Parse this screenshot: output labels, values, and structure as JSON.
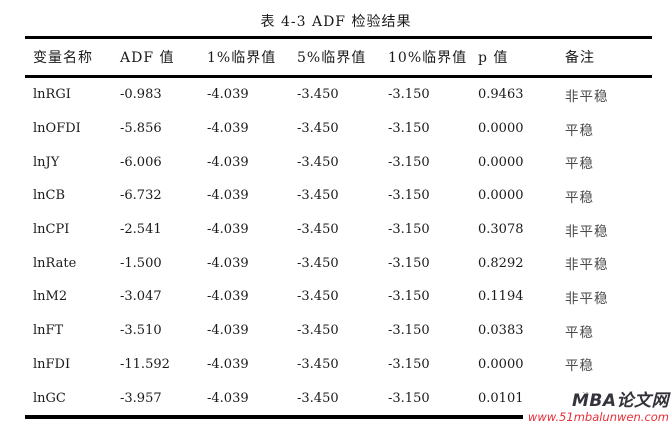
{
  "title": "表 4-3 ADF 检验结果",
  "table": {
    "headers": [
      "变量名称",
      "ADF 值",
      "1%临界值",
      "5%临界值",
      "10%临界值",
      "p 值",
      "备注"
    ],
    "rows": [
      {
        "variable": "lnRGI",
        "adf": "-0.983",
        "crit1": "-4.039",
        "crit5": "-3.450",
        "crit10": "-3.150",
        "p": "0.9463",
        "remark": "非平稳"
      },
      {
        "variable": "lnOFDI",
        "adf": "-5.856",
        "crit1": "-4.039",
        "crit5": "-3.450",
        "crit10": "-3.150",
        "p": "0.0000",
        "remark": "平稳"
      },
      {
        "variable": "lnJY",
        "adf": "-6.006",
        "crit1": "-4.039",
        "crit5": "-3.450",
        "crit10": "-3.150",
        "p": "0.0000",
        "remark": "平稳"
      },
      {
        "variable": "lnCB",
        "adf": "-6.732",
        "crit1": "-4.039",
        "crit5": "-3.450",
        "crit10": "-3.150",
        "p": "0.0000",
        "remark": "平稳"
      },
      {
        "variable": "lnCPI",
        "adf": "-2.541",
        "crit1": "-4.039",
        "crit5": "-3.450",
        "crit10": "-3.150",
        "p": "0.3078",
        "remark": "非平稳"
      },
      {
        "variable": "lnRate",
        "adf": "-1.500",
        "crit1": "-4.039",
        "crit5": "-3.450",
        "crit10": "-3.150",
        "p": "0.8292",
        "remark": "非平稳"
      },
      {
        "variable": "lnM2",
        "adf": "-3.047",
        "crit1": "-4.039",
        "crit5": "-3.450",
        "crit10": "-3.150",
        "p": "0.1194",
        "remark": "非平稳"
      },
      {
        "variable": "lnFT",
        "adf": "-3.510",
        "crit1": "-4.039",
        "crit5": "-3.450",
        "crit10": "-3.150",
        "p": "0.0383",
        "remark": "平稳"
      },
      {
        "variable": "lnFDI",
        "adf": "-11.592",
        "crit1": "-4.039",
        "crit5": "-3.450",
        "crit10": "-3.150",
        "p": "0.0000",
        "remark": "平稳"
      },
      {
        "variable": "lnGC",
        "adf": "-3.957",
        "crit1": "-4.039",
        "crit5": "-3.450",
        "crit10": "-3.150",
        "p": "0.0101",
        "remark": "平稳"
      }
    ]
  },
  "watermark": {
    "site_name": "MBA论文网",
    "site_url": "www.51mbalunwen.com",
    "name_color": "#33333b",
    "url_color": "#e5303a"
  }
}
